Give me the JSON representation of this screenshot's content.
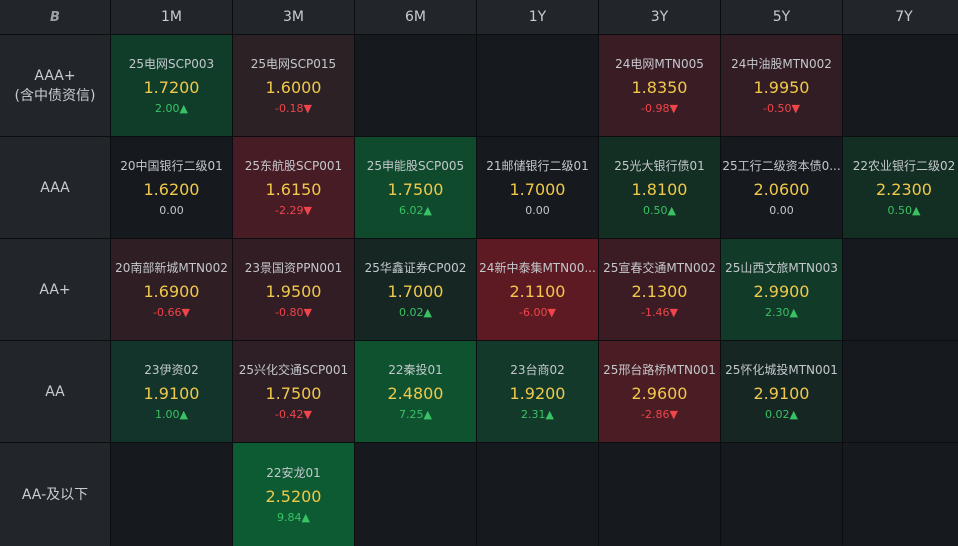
{
  "corner_label": "B",
  "columns": [
    "1M",
    "3M",
    "6M",
    "1Y",
    "3Y",
    "5Y",
    "7Y"
  ],
  "colors": {
    "up": "#39c264",
    "down": "#f0454a",
    "value": "#f0c84a",
    "empty": "#161a1f"
  },
  "rows": [
    {
      "label_lines": [
        "AAA+",
        "(含中债资信)"
      ],
      "cells": [
        {
          "name": "25电网SCP003",
          "value": "1.7200",
          "change": "2.00▲",
          "dir": "up",
          "bg": "#103d29"
        },
        {
          "name": "25电网SCP015",
          "value": "1.6000",
          "change": "-0.18▼",
          "dir": "down",
          "bg": "#2c2226"
        },
        null,
        null,
        {
          "name": "24电网MTN005",
          "value": "1.8350",
          "change": "-0.98▼",
          "dir": "down",
          "bg": "#3a1c24"
        },
        {
          "name": "24中油股MTN002",
          "value": "1.9950",
          "change": "-0.50▼",
          "dir": "down",
          "bg": "#321d24"
        },
        null
      ]
    },
    {
      "label_lines": [
        "AAA"
      ],
      "cells": [
        {
          "name": "20中国银行二级01",
          "value": "1.6200",
          "change": "0.00",
          "dir": "flat",
          "bg": "#161a1f"
        },
        {
          "name": "25东航股SCP001",
          "value": "1.6150",
          "change": "-2.29▼",
          "dir": "down",
          "bg": "#481c24"
        },
        {
          "name": "25申能股SCP005",
          "value": "1.7500",
          "change": "6.02▲",
          "dir": "up",
          "bg": "#0f4a2c"
        },
        {
          "name": "21邮储银行二级01",
          "value": "1.7000",
          "change": "0.00",
          "dir": "flat",
          "bg": "#161a1f"
        },
        {
          "name": "25光大银行债01",
          "value": "1.8100",
          "change": "0.50▲",
          "dir": "up",
          "bg": "#132e22"
        },
        {
          "name": "25工行二级资本债0...",
          "value": "2.0600",
          "change": "0.00",
          "dir": "flat",
          "bg": "#161a1f"
        },
        {
          "name": "22农业银行二级02",
          "value": "2.2300",
          "change": "0.50▲",
          "dir": "up",
          "bg": "#132e22"
        }
      ]
    },
    {
      "label_lines": [
        "AA+"
      ],
      "cells": [
        {
          "name": "20南部新城MTN002",
          "value": "1.6900",
          "change": "-0.66▼",
          "dir": "down",
          "bg": "#2f1e24"
        },
        {
          "name": "23景国资PPN001",
          "value": "1.9500",
          "change": "-0.80▼",
          "dir": "down",
          "bg": "#321d24"
        },
        {
          "name": "25华鑫证券CP002",
          "value": "1.7000",
          "change": "0.02▲",
          "dir": "up",
          "bg": "#162623"
        },
        {
          "name": "24新中泰集MTN00...",
          "value": "2.1100",
          "change": "-6.00▼",
          "dir": "down",
          "bg": "#5e1a22"
        },
        {
          "name": "25宣春交通MTN002",
          "value": "2.1300",
          "change": "-1.46▼",
          "dir": "down",
          "bg": "#3c1c24"
        },
        {
          "name": "25山西文旅MTN003",
          "value": "2.9900",
          "change": "2.30▲",
          "dir": "up",
          "bg": "#123a29"
        },
        null
      ]
    },
    {
      "label_lines": [
        "AA"
      ],
      "cells": [
        {
          "name": "23伊资02",
          "value": "1.9100",
          "change": "1.00▲",
          "dir": "up",
          "bg": "#13342a"
        },
        {
          "name": "25兴化交通SCP001",
          "value": "1.7500",
          "change": "-0.42▼",
          "dir": "down",
          "bg": "#2d1f25"
        },
        {
          "name": "22秦投01",
          "value": "2.4800",
          "change": "7.25▲",
          "dir": "up",
          "bg": "#0e5230"
        },
        {
          "name": "23台商02",
          "value": "1.9200",
          "change": "2.31▲",
          "dir": "up",
          "bg": "#12392a"
        },
        {
          "name": "25邢台路桥MTN001",
          "value": "2.9600",
          "change": "-2.86▼",
          "dir": "down",
          "bg": "#4a1c24"
        },
        {
          "name": "25怀化城投MTN001",
          "value": "2.9100",
          "change": "0.02▲",
          "dir": "up",
          "bg": "#162623"
        },
        null
      ]
    },
    {
      "label_lines": [
        "AA-及以下"
      ],
      "cells": [
        null,
        {
          "name": "22安龙01",
          "value": "2.5200",
          "change": "9.84▲",
          "dir": "up",
          "bg": "#0d5b33"
        },
        null,
        null,
        null,
        null,
        null
      ]
    }
  ]
}
